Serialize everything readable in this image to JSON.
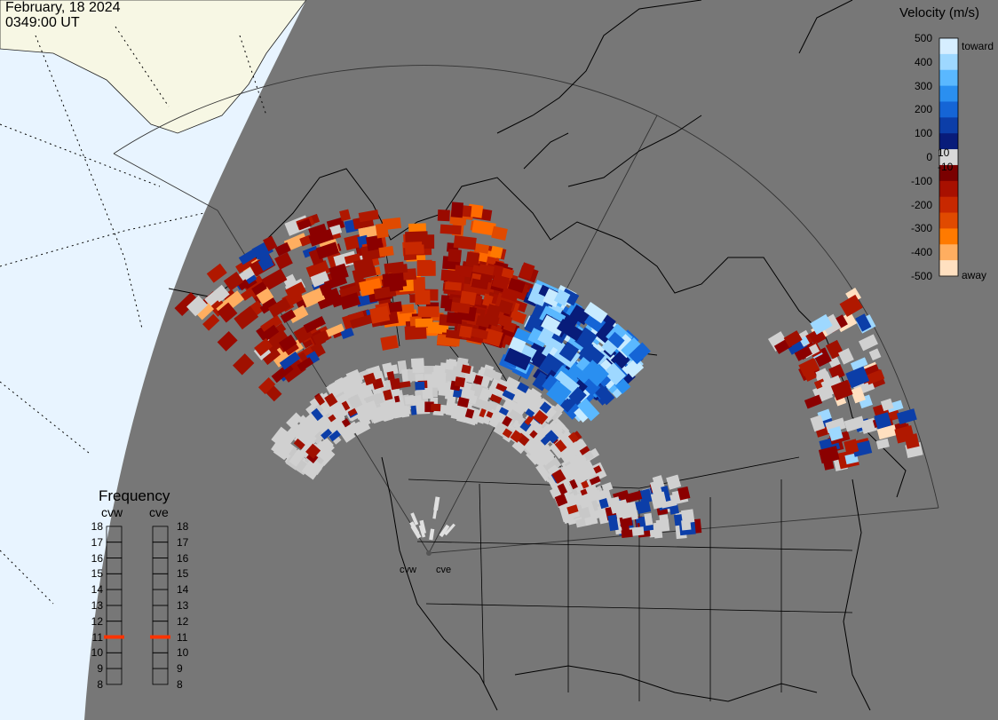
{
  "header": {
    "date": "February, 18 2024",
    "time": "0349:00 UT"
  },
  "colors": {
    "background_gray": "#777777",
    "ocean": "#e8f4ff",
    "land_beyond": "#f7f7e4",
    "ground_scatter": "#d0d0d0",
    "low_frequency_marker": "#ff3300"
  },
  "velocity_legend": {
    "title": "Velocity (m/s)",
    "ticks": [
      "500",
      "400",
      "300",
      "200",
      "100",
      "0",
      "-100",
      "-200",
      "-300",
      "-400",
      "-500"
    ],
    "small_ticks": [
      "10",
      "-10"
    ],
    "toward_label": "toward",
    "away_label": "away",
    "colors_top_to_bottom": [
      "#d6eeff",
      "#9ed8ff",
      "#5ab8ff",
      "#2a8ff0",
      "#1565d6",
      "#0c3ea8",
      "#081c7a",
      "#d8d8d8",
      "#7a0000",
      "#a81000",
      "#c82800",
      "#e04a00",
      "#ff7a00",
      "#ffae60",
      "#ffe0c0"
    ]
  },
  "frequency_legend": {
    "title": "Frequency",
    "radars": [
      {
        "label": "cvw",
        "frequency_mhz": 11
      },
      {
        "label": "cve",
        "frequency_mhz": 11
      }
    ],
    "scale": [
      "18",
      "17",
      "16",
      "15",
      "14",
      "13",
      "12",
      "11",
      "10",
      "9",
      "8"
    ]
  },
  "map": {
    "site_labels": [
      "cvw",
      "cve"
    ],
    "projection_icon": "polar-stereographic-map"
  }
}
